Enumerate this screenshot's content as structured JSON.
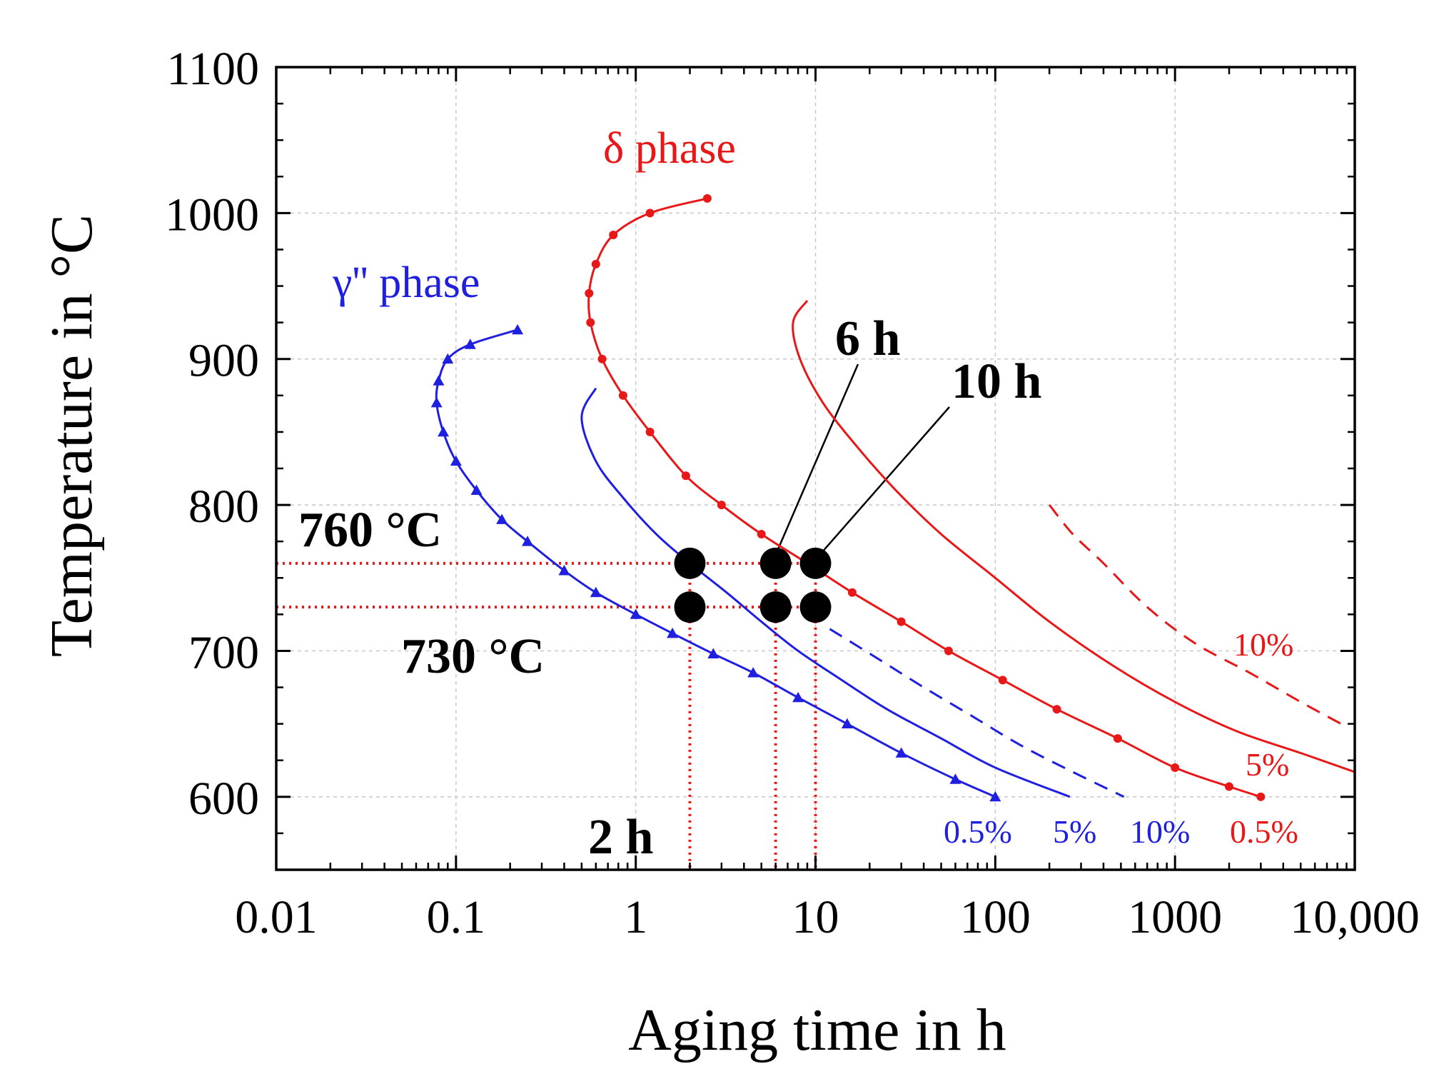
{
  "chart_data": {
    "type": "line",
    "xscale": "log",
    "xlim": [
      0.01,
      10000
    ],
    "ylim": [
      550,
      1100
    ],
    "grid": true,
    "xlabel": "Aging time in h",
    "ylabel": "Temperature in °C",
    "xticks": [
      {
        "value": 0.01,
        "label": "0.01"
      },
      {
        "value": 0.1,
        "label": "0.1"
      },
      {
        "value": 1,
        "label": "1"
      },
      {
        "value": 10,
        "label": "10"
      },
      {
        "value": 100,
        "label": "100"
      },
      {
        "value": 1000,
        "label": "1000"
      },
      {
        "value": 10000,
        "label": "10,000"
      }
    ],
    "yticks": [
      {
        "value": 600,
        "label": "600"
      },
      {
        "value": 700,
        "label": "700"
      },
      {
        "value": 800,
        "label": "800"
      },
      {
        "value": 900,
        "label": "900"
      },
      {
        "value": 1000,
        "label": "1000"
      },
      {
        "value": 1100,
        "label": "1100"
      }
    ],
    "series": [
      {
        "name": "γ'' phase 0.5%",
        "color": "#1f1fe0",
        "style": "solid",
        "marker": "triangle",
        "points": [
          [
            0.22,
            920
          ],
          [
            0.12,
            910
          ],
          [
            0.09,
            900
          ],
          [
            0.08,
            885
          ],
          [
            0.078,
            870
          ],
          [
            0.085,
            850
          ],
          [
            0.1,
            830
          ],
          [
            0.13,
            810
          ],
          [
            0.18,
            790
          ],
          [
            0.25,
            775
          ],
          [
            0.4,
            755
          ],
          [
            0.6,
            740
          ],
          [
            1.0,
            725
          ],
          [
            1.6,
            712
          ],
          [
            2.7,
            698
          ],
          [
            4.5,
            685
          ],
          [
            8.0,
            668
          ],
          [
            15,
            650
          ],
          [
            30,
            630
          ],
          [
            60,
            612
          ],
          [
            100,
            600
          ]
        ]
      },
      {
        "name": "γ'' phase 5%",
        "color": "#1f1fe0",
        "style": "solid",
        "points": [
          [
            0.6,
            880
          ],
          [
            0.5,
            860
          ],
          [
            0.6,
            830
          ],
          [
            0.85,
            805
          ],
          [
            1.3,
            780
          ],
          [
            2.0,
            760
          ],
          [
            3.2,
            740
          ],
          [
            5.0,
            720
          ],
          [
            8.0,
            700
          ],
          [
            14,
            680
          ],
          [
            25,
            660
          ],
          [
            50,
            640
          ],
          [
            100,
            620
          ],
          [
            260,
            600
          ]
        ]
      },
      {
        "name": "γ'' phase 10%",
        "color": "#1f1fe0",
        "style": "dashed",
        "points": [
          [
            12,
            715
          ],
          [
            22,
            695
          ],
          [
            40,
            675
          ],
          [
            75,
            655
          ],
          [
            140,
            635
          ],
          [
            270,
            617
          ],
          [
            520,
            600
          ]
        ]
      },
      {
        "name": "δ phase 0.5%",
        "color": "#e81818",
        "style": "solid",
        "marker": "circle",
        "points": [
          [
            2.5,
            1010
          ],
          [
            1.2,
            1000
          ],
          [
            0.75,
            985
          ],
          [
            0.6,
            965
          ],
          [
            0.55,
            945
          ],
          [
            0.56,
            925
          ],
          [
            0.65,
            900
          ],
          [
            0.85,
            875
          ],
          [
            1.2,
            850
          ],
          [
            1.9,
            820
          ],
          [
            3,
            800
          ],
          [
            5,
            780
          ],
          [
            9,
            760
          ],
          [
            16,
            740
          ],
          [
            30,
            720
          ],
          [
            55,
            700
          ],
          [
            110,
            680
          ],
          [
            220,
            660
          ],
          [
            480,
            640
          ],
          [
            1000,
            620
          ],
          [
            2000,
            607
          ],
          [
            3000,
            600
          ]
        ]
      },
      {
        "name": "δ phase 5%",
        "color": "#e81818",
        "style": "solid",
        "points": [
          [
            9,
            940
          ],
          [
            7.5,
            925
          ],
          [
            8.2,
            900
          ],
          [
            11,
            870
          ],
          [
            17,
            840
          ],
          [
            28,
            810
          ],
          [
            50,
            780
          ],
          [
            100,
            750
          ],
          [
            200,
            720
          ],
          [
            450,
            690
          ],
          [
            1000,
            665
          ],
          [
            2200,
            645
          ],
          [
            5000,
            630
          ],
          [
            10000,
            617
          ]
        ]
      },
      {
        "name": "δ phase 10%",
        "color": "#e81818",
        "style": "dashed",
        "points": [
          [
            200,
            800
          ],
          [
            270,
            780
          ],
          [
            400,
            760
          ],
          [
            700,
            730
          ],
          [
            1300,
            705
          ],
          [
            2600,
            685
          ],
          [
            5000,
            665
          ],
          [
            9000,
            648
          ]
        ]
      }
    ],
    "reference_temperatures": [
      {
        "value": 760,
        "label": "760 °C"
      },
      {
        "value": 730,
        "label": "730 °C"
      }
    ],
    "reference_times": [
      {
        "value": 2,
        "label": "2 h"
      },
      {
        "value": 6,
        "label": "6 h"
      },
      {
        "value": 10,
        "label": "10 h"
      }
    ],
    "sample_points": [
      [
        2,
        760
      ],
      [
        6,
        760
      ],
      [
        10,
        760
      ],
      [
        2,
        730
      ],
      [
        6,
        730
      ],
      [
        10,
        730
      ]
    ],
    "annotations": {
      "gamma_phase": "γ'' phase",
      "delta_phase": "δ phase",
      "t760": "760 °C",
      "t730": "730 °C",
      "h2": "2 h",
      "h6": "6 h",
      "h10": "10 h",
      "blue_05": "0.5%",
      "blue_5": "5%",
      "blue_10": "10%",
      "red_05": "0.5%",
      "red_5": "5%",
      "red_10": "10%"
    },
    "colors": {
      "blue": "#1f1fe0",
      "red": "#e81818",
      "black": "#000000",
      "grid": "#c8c8c8"
    }
  }
}
